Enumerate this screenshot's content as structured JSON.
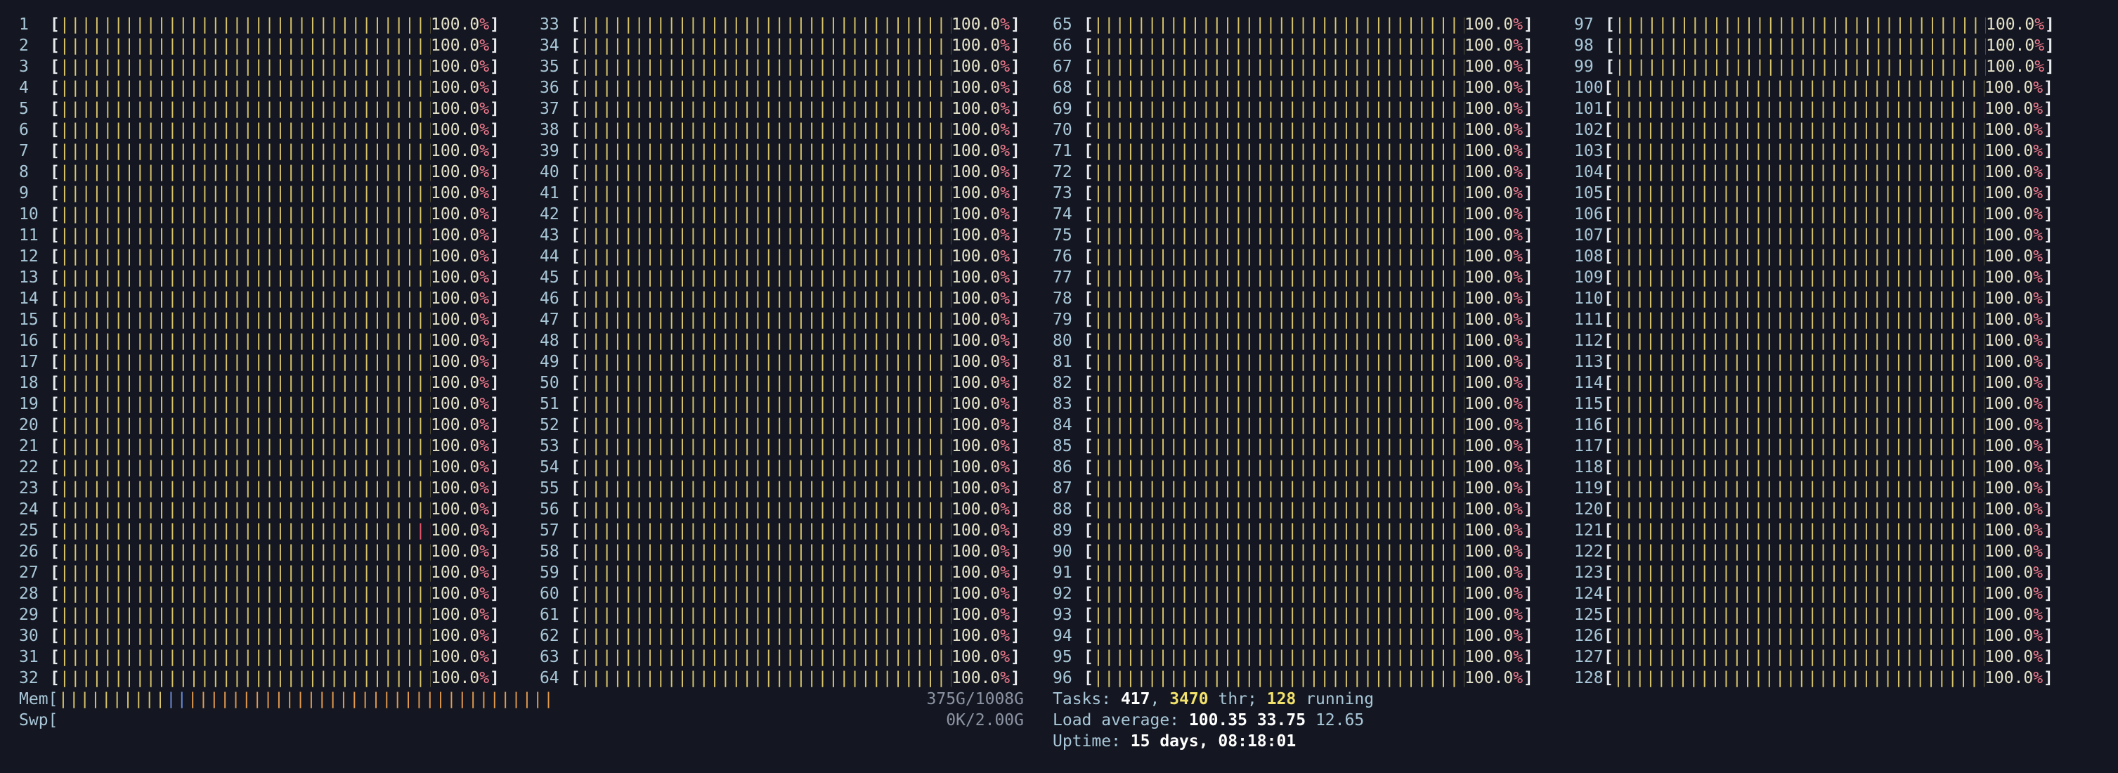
{
  "cpus": [
    {
      "id": "1",
      "pct": "100.0%"
    },
    {
      "id": "2",
      "pct": "100.0%"
    },
    {
      "id": "3",
      "pct": "100.0%"
    },
    {
      "id": "4",
      "pct": "100.0%"
    },
    {
      "id": "5",
      "pct": "100.0%"
    },
    {
      "id": "6",
      "pct": "100.0%"
    },
    {
      "id": "7",
      "pct": "100.0%"
    },
    {
      "id": "8",
      "pct": "100.0%"
    },
    {
      "id": "9",
      "pct": "100.0%"
    },
    {
      "id": "10",
      "pct": "100.0%"
    },
    {
      "id": "11",
      "pct": "100.0%"
    },
    {
      "id": "12",
      "pct": "100.0%"
    },
    {
      "id": "13",
      "pct": "100.0%"
    },
    {
      "id": "14",
      "pct": "100.0%"
    },
    {
      "id": "15",
      "pct": "100.0%"
    },
    {
      "id": "16",
      "pct": "100.0%"
    },
    {
      "id": "17",
      "pct": "100.0%"
    },
    {
      "id": "18",
      "pct": "100.0%"
    },
    {
      "id": "19",
      "pct": "100.0%"
    },
    {
      "id": "20",
      "pct": "100.0%"
    },
    {
      "id": "21",
      "pct": "100.0%"
    },
    {
      "id": "22",
      "pct": "100.0%"
    },
    {
      "id": "23",
      "pct": "100.0%"
    },
    {
      "id": "24",
      "pct": "100.0%"
    },
    {
      "id": "25",
      "pct": "100.0%"
    },
    {
      "id": "26",
      "pct": "100.0%"
    },
    {
      "id": "27",
      "pct": "100.0%"
    },
    {
      "id": "28",
      "pct": "100.0%"
    },
    {
      "id": "29",
      "pct": "100.0%"
    },
    {
      "id": "30",
      "pct": "100.0%"
    },
    {
      "id": "31",
      "pct": "100.0%"
    },
    {
      "id": "32",
      "pct": "100.0%"
    },
    {
      "id": "33",
      "pct": "100.0%"
    },
    {
      "id": "34",
      "pct": "100.0%"
    },
    {
      "id": "35",
      "pct": "100.0%"
    },
    {
      "id": "36",
      "pct": "100.0%"
    },
    {
      "id": "37",
      "pct": "100.0%"
    },
    {
      "id": "38",
      "pct": "100.0%"
    },
    {
      "id": "39",
      "pct": "100.0%"
    },
    {
      "id": "40",
      "pct": "100.0%"
    },
    {
      "id": "41",
      "pct": "100.0%"
    },
    {
      "id": "42",
      "pct": "100.0%"
    },
    {
      "id": "43",
      "pct": "100.0%"
    },
    {
      "id": "44",
      "pct": "100.0%"
    },
    {
      "id": "45",
      "pct": "100.0%"
    },
    {
      "id": "46",
      "pct": "100.0%"
    },
    {
      "id": "47",
      "pct": "100.0%"
    },
    {
      "id": "48",
      "pct": "100.0%"
    },
    {
      "id": "49",
      "pct": "100.0%"
    },
    {
      "id": "50",
      "pct": "100.0%"
    },
    {
      "id": "51",
      "pct": "100.0%"
    },
    {
      "id": "52",
      "pct": "100.0%"
    },
    {
      "id": "53",
      "pct": "100.0%"
    },
    {
      "id": "54",
      "pct": "100.0%"
    },
    {
      "id": "55",
      "pct": "100.0%"
    },
    {
      "id": "56",
      "pct": "100.0%"
    },
    {
      "id": "57",
      "pct": "100.0%"
    },
    {
      "id": "58",
      "pct": "100.0%"
    },
    {
      "id": "59",
      "pct": "100.0%"
    },
    {
      "id": "60",
      "pct": "100.0%"
    },
    {
      "id": "61",
      "pct": "100.0%"
    },
    {
      "id": "62",
      "pct": "100.0%"
    },
    {
      "id": "63",
      "pct": "100.0%"
    },
    {
      "id": "64",
      "pct": "100.0%"
    },
    {
      "id": "65",
      "pct": "100.0%"
    },
    {
      "id": "66",
      "pct": "100.0%"
    },
    {
      "id": "67",
      "pct": "100.0%"
    },
    {
      "id": "68",
      "pct": "100.0%"
    },
    {
      "id": "69",
      "pct": "100.0%"
    },
    {
      "id": "70",
      "pct": "100.0%"
    },
    {
      "id": "71",
      "pct": "100.0%"
    },
    {
      "id": "72",
      "pct": "100.0%"
    },
    {
      "id": "73",
      "pct": "100.0%"
    },
    {
      "id": "74",
      "pct": "100.0%"
    },
    {
      "id": "75",
      "pct": "100.0%"
    },
    {
      "id": "76",
      "pct": "100.0%"
    },
    {
      "id": "77",
      "pct": "100.0%"
    },
    {
      "id": "78",
      "pct": "100.0%"
    },
    {
      "id": "79",
      "pct": "100.0%"
    },
    {
      "id": "80",
      "pct": "100.0%"
    },
    {
      "id": "81",
      "pct": "100.0%"
    },
    {
      "id": "82",
      "pct": "100.0%"
    },
    {
      "id": "83",
      "pct": "100.0%"
    },
    {
      "id": "84",
      "pct": "100.0%"
    },
    {
      "id": "85",
      "pct": "100.0%"
    },
    {
      "id": "86",
      "pct": "100.0%"
    },
    {
      "id": "87",
      "pct": "100.0%"
    },
    {
      "id": "88",
      "pct": "100.0%"
    },
    {
      "id": "89",
      "pct": "100.0%"
    },
    {
      "id": "90",
      "pct": "100.0%"
    },
    {
      "id": "91",
      "pct": "100.0%"
    },
    {
      "id": "92",
      "pct": "100.0%"
    },
    {
      "id": "93",
      "pct": "100.0%"
    },
    {
      "id": "94",
      "pct": "100.0%"
    },
    {
      "id": "95",
      "pct": "100.0%"
    },
    {
      "id": "96",
      "pct": "100.0%"
    },
    {
      "id": "97",
      "pct": "100.0%"
    },
    {
      "id": "98",
      "pct": "100.0%"
    },
    {
      "id": "99",
      "pct": "100.0%"
    },
    {
      "id": "100",
      "pct": "100.0%"
    },
    {
      "id": "101",
      "pct": "100.0%"
    },
    {
      "id": "102",
      "pct": "100.0%"
    },
    {
      "id": "103",
      "pct": "100.0%"
    },
    {
      "id": "104",
      "pct": "100.0%"
    },
    {
      "id": "105",
      "pct": "100.0%"
    },
    {
      "id": "106",
      "pct": "100.0%"
    },
    {
      "id": "107",
      "pct": "100.0%"
    },
    {
      "id": "108",
      "pct": "100.0%"
    },
    {
      "id": "109",
      "pct": "100.0%"
    },
    {
      "id": "110",
      "pct": "100.0%"
    },
    {
      "id": "111",
      "pct": "100.0%"
    },
    {
      "id": "112",
      "pct": "100.0%"
    },
    {
      "id": "113",
      "pct": "100.0%"
    },
    {
      "id": "114",
      "pct": "100.0%"
    },
    {
      "id": "115",
      "pct": "100.0%"
    },
    {
      "id": "116",
      "pct": "100.0%"
    },
    {
      "id": "117",
      "pct": "100.0%"
    },
    {
      "id": "118",
      "pct": "100.0%"
    },
    {
      "id": "119",
      "pct": "100.0%"
    },
    {
      "id": "120",
      "pct": "100.0%"
    },
    {
      "id": "121",
      "pct": "100.0%"
    },
    {
      "id": "122",
      "pct": "100.0%"
    },
    {
      "id": "123",
      "pct": "100.0%"
    },
    {
      "id": "124",
      "pct": "100.0%"
    },
    {
      "id": "125",
      "pct": "100.0%"
    },
    {
      "id": "126",
      "pct": "100.0%"
    },
    {
      "id": "127",
      "pct": "100.0%"
    },
    {
      "id": "128",
      "pct": "100.0%"
    }
  ],
  "bracket_open": "[",
  "bracket_close": "]",
  "mem": {
    "label": "Mem[",
    "value": "375G/1008G",
    "used_fraction": 0.372
  },
  "swp": {
    "label": "Swp[",
    "value": "0K/2.00G",
    "used_fraction": 0.0
  },
  "tasks": {
    "label": "Tasks:",
    "count": "417",
    "sep1": ",",
    "threads": "3470",
    "thr_label": "thr;",
    "running": "128",
    "running_label": "running"
  },
  "load": {
    "label": "Load average:",
    "avg1": "100.35",
    "avg5": "33.75",
    "avg15": "12.65"
  },
  "uptime": {
    "label": "Uptime:",
    "value": "15 days, 08:18:01"
  },
  "colors": {
    "background": "#141721",
    "bar_user": "#d8c46a",
    "bar_kernel": "#e5566a",
    "mem_buffers": "#6b8bd6",
    "mem_cache": "#e39a4f"
  }
}
